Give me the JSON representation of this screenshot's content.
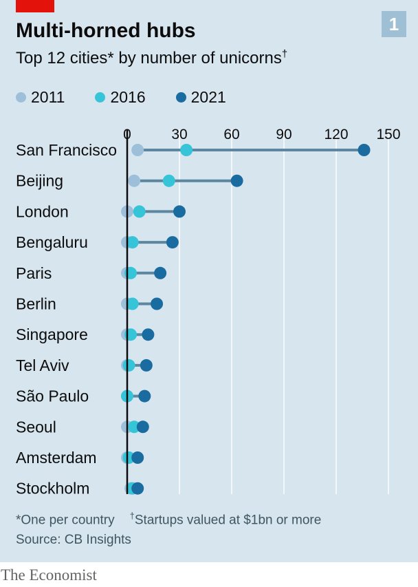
{
  "header": {
    "badge": "1",
    "title": "Multi-horned hubs",
    "subtitle": "Top 12 cities* by number of unicorns",
    "subtitle_mark": "†"
  },
  "legend": [
    {
      "name": "2011",
      "color": "#9ebfd9"
    },
    {
      "name": "2016",
      "color": "#36c4d8"
    },
    {
      "name": "2021",
      "color": "#1a6ca0"
    }
  ],
  "chart_data": {
    "type": "dot-range",
    "title": "Multi-horned hubs",
    "subtitle": "Top 12 cities* by number of unicorns†",
    "x_ticks": [
      "0",
      "30",
      "60",
      "90",
      "120",
      "150"
    ],
    "x_tick_values": [
      0,
      30,
      60,
      90,
      120,
      150
    ],
    "xlim": [
      0,
      150
    ],
    "grid": true,
    "legend_position": "top-left",
    "categories": [
      "San Francisco",
      "Beijing",
      "London",
      "Bengaluru",
      "Paris",
      "Berlin",
      "Singapore",
      "Tel Aviv",
      "São Paulo",
      "Seoul",
      "Amsterdam",
      "Stockholm"
    ],
    "series": [
      {
        "name": "2011",
        "color": "#9ebfd9",
        "values": [
          6,
          4,
          0,
          0,
          0,
          0,
          0,
          0,
          0,
          0,
          0,
          2
        ]
      },
      {
        "name": "2016",
        "color": "#36c4d8",
        "values": [
          34,
          24,
          7,
          3,
          2,
          3,
          2,
          1,
          0,
          4,
          1,
          3
        ]
      },
      {
        "name": "2021",
        "color": "#1a6ca0",
        "values": [
          136,
          63,
          30,
          26,
          19,
          17,
          12,
          11,
          10,
          9,
          6,
          6
        ]
      }
    ]
  },
  "footer": {
    "note_one": "*One per country",
    "note_two_mark": "†",
    "note_two": "Startups valued at $1bn or more",
    "source": "Source: CB Insights",
    "brand": "The Economist"
  }
}
